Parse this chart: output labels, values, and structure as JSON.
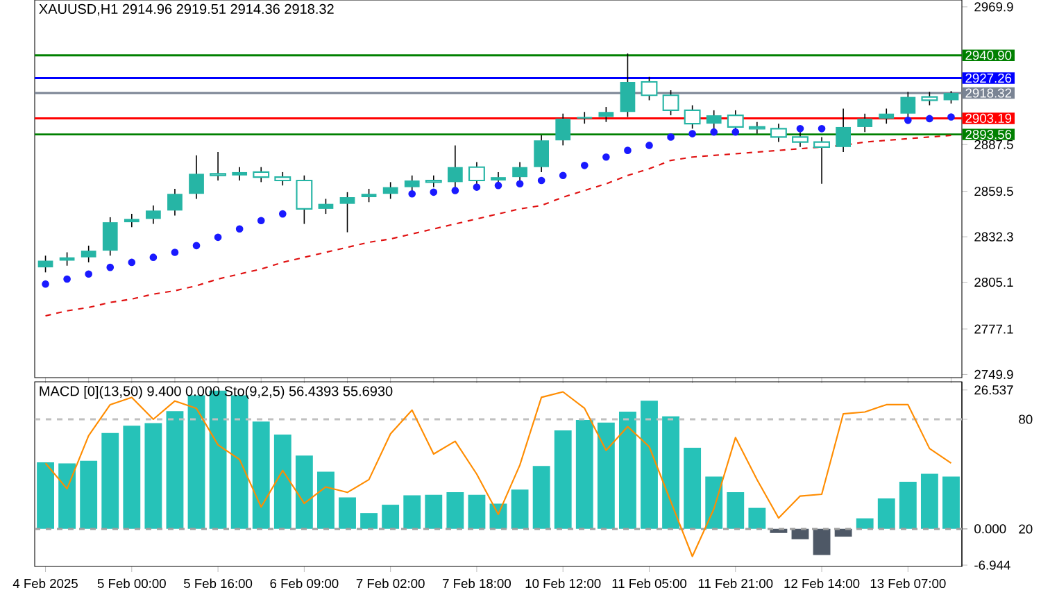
{
  "chart_data": [
    {
      "type": "candlestick",
      "title": "XAUUSD,H1 2914.96 2919.51 2914.36 2918.32",
      "categories": [
        null,
        null,
        null,
        null,
        null,
        null,
        null,
        null,
        null,
        null,
        null,
        null,
        null,
        null,
        null,
        null,
        null,
        null,
        null,
        null,
        null,
        null,
        null,
        null,
        null,
        null,
        null,
        null,
        null,
        null,
        null,
        null,
        null,
        null,
        null,
        null,
        null,
        null,
        null,
        null,
        null,
        null,
        null
      ],
      "ylim": [
        2748,
        2974
      ],
      "yticks": [
        2969.9,
        2887.5,
        2859.5,
        2832.3,
        2805.1,
        2777.1,
        2749.9
      ],
      "tick_labels": "y",
      "series": [
        {
          "color": "#26b5a5",
          "ohlc": [
            [
              2814,
              2821,
              2811,
              2818
            ],
            [
              2818,
              2823,
              2815,
              2820
            ],
            [
              2820,
              2827,
              2817,
              2824
            ],
            [
              2824,
              2844,
              2821,
              2841
            ],
            [
              2841,
              2846,
              2838,
              2843
            ],
            [
              2843,
              2851,
              2840,
              2848
            ],
            [
              2848,
              2861,
              2845,
              2858
            ],
            [
              2858,
              2881,
              2855,
              2870
            ],
            [
              2870,
              2883,
              2866,
              2869
            ],
            [
              2869,
              2874,
              2866,
              2871
            ],
            [
              2871,
              2874,
              2865,
              2868
            ],
            [
              2868,
              2871,
              2863,
              2866
            ],
            [
              2866,
              2869,
              2840,
              2849
            ],
            [
              2849,
              2855,
              2846,
              2852
            ],
            [
              2852,
              2859,
              2835,
              2856
            ],
            [
              2856,
              2861,
              2853,
              2858
            ],
            [
              2858,
              2865,
              2855,
              2862
            ],
            [
              2862,
              2869,
              2859,
              2866
            ],
            [
              2866,
              2869,
              2862,
              2865
            ],
            [
              2865,
              2887,
              2862,
              2874
            ],
            [
              2874,
              2877,
              2863,
              2866
            ],
            [
              2866,
              2871,
              2863,
              2868
            ],
            [
              2868,
              2877,
              2865,
              2874
            ],
            [
              2874,
              2893,
              2871,
              2890
            ],
            [
              2890,
              2906,
              2887,
              2903
            ],
            [
              2903,
              2907,
              2900,
              2904
            ],
            [
              2904,
              2910,
              2901,
              2907
            ],
            [
              2907,
              2942,
              2904,
              2925
            ],
            [
              2925,
              2928,
              2914,
              2917
            ],
            [
              2917,
              2920,
              2905,
              2908
            ],
            [
              2908,
              2911,
              2897,
              2900
            ],
            [
              2900,
              2908,
              2897,
              2905
            ],
            [
              2905,
              2908,
              2895,
              2898
            ],
            [
              2898,
              2901,
              2894,
              2897
            ],
            [
              2897,
              2900,
              2889,
              2892
            ],
            [
              2892,
              2895,
              2886,
              2889
            ],
            [
              2889,
              2892,
              2864,
              2886
            ],
            [
              2886,
              2909,
              2883,
              2898
            ],
            [
              2898,
              2906,
              2895,
              2903
            ],
            [
              2903,
              2909,
              2900,
              2906
            ],
            [
              2906,
              2919,
              2903,
              2916
            ],
            [
              2916,
              2919,
              2911,
              2914
            ],
            [
              2914,
              2919.51,
              2912,
              2918.32
            ]
          ]
        },
        {
          "type": "scatter",
          "color": "#1a1aff",
          "values": [
            2804,
            2807,
            2810,
            2814,
            2817,
            2820,
            2823,
            2827,
            2832,
            2837,
            2842,
            2846,
            null,
            null,
            null,
            null,
            null,
            2858,
            2859,
            2860,
            2862,
            2863,
            2864,
            2866,
            2869,
            2875,
            2880,
            2884,
            2887,
            2892,
            2894,
            2895,
            2895,
            null,
            null,
            2897,
            2897,
            null,
            null,
            null,
            2902,
            2903,
            2904
          ]
        },
        {
          "type": "line",
          "color": "#e01010",
          "line_style": "dashed",
          "values": [
            2785,
            2788,
            2790,
            2793,
            2795,
            2798,
            2800,
            2803,
            2807,
            2810,
            2813,
            2817,
            2820,
            2823,
            2826,
            2829,
            2831,
            2834,
            2837,
            2840,
            2843,
            2846,
            2849,
            2851,
            2856,
            2860,
            2864,
            2869,
            2873,
            2878,
            2880,
            2881,
            2882,
            2883,
            2884,
            2885,
            2886,
            2887,
            2889,
            2890,
            2891,
            2892,
            2893
          ]
        }
      ],
      "ref_lines": [
        {
          "axis": "y",
          "value": 2940.9,
          "label": "2940.90",
          "color": "#008000"
        },
        {
          "axis": "y",
          "value": 2927.26,
          "label": "2927.26",
          "color": "#0000ff"
        },
        {
          "axis": "y",
          "value": 2918.32,
          "label": "2918.32",
          "color": "#7a8494"
        },
        {
          "axis": "y",
          "value": 2903.19,
          "label": "2903.19",
          "color": "#ff0000"
        },
        {
          "axis": "y",
          "value": 2893.56,
          "label": "2893.56",
          "color": "#008000"
        }
      ]
    },
    {
      "type": "bar",
      "title": "MACD [0](13,50) 9.400 0.000  Sto(9,2,5) 56.4393 55.6930",
      "ylim": [
        -7.2,
        28.1
      ],
      "yticks": [
        26.537,
        {
          "value": 0,
          "label": "0.000"
        },
        -6.944
      ],
      "y2lim": [
        -0.5,
        100.5
      ],
      "y2ticks": [
        80,
        20
      ],
      "categories": [
        "4 Feb 2025",
        null,
        null,
        null,
        "5 Feb 00:00",
        null,
        null,
        null,
        "5 Feb 16:00",
        null,
        null,
        null,
        "6 Feb 09:00",
        null,
        null,
        null,
        "7 Feb 02:00",
        null,
        null,
        null,
        "7 Feb 18:00",
        null,
        null,
        null,
        "10 Feb 12:00",
        null,
        null,
        null,
        "11 Feb 05:00",
        null,
        null,
        null,
        "11 Feb 21:00",
        null,
        null,
        null,
        "12 Feb 14:00",
        null,
        null,
        null,
        "13 Feb 07:00",
        null,
        null
      ],
      "series": [
        {
          "values": [
            12.7,
            12.5,
            13.0,
            18.3,
            19.7,
            20.2,
            22.5,
            25.5,
            26.4,
            25.5,
            20.5,
            18.0,
            14.0,
            10.9,
            6.0,
            3.0,
            4.6,
            6.4,
            6.5,
            7.0,
            6.5,
            4.8,
            7.5,
            12.0,
            18.8,
            20.8,
            20.3,
            22.4,
            24.5,
            21.5,
            15.5,
            10.0,
            7.0,
            4.0,
            -0.8,
            -2.0,
            -5.0,
            -1.5,
            2.0,
            5.8,
            9.0,
            10.5,
            10.0
          ],
          "colors": [
            "#26c2b8",
            "#26c2b8",
            "#26c2b8",
            "#26c2b8",
            "#26c2b8",
            "#26c2b8",
            "#26c2b8",
            "#26c2b8",
            "#26c2b8",
            "#26c2b8",
            "#26c2b8",
            "#26c2b8",
            "#26c2b8",
            "#26c2b8",
            "#26c2b8",
            "#26c2b8",
            "#26c2b8",
            "#26c2b8",
            "#26c2b8",
            "#26c2b8",
            "#26c2b8",
            "#26c2b8",
            "#26c2b8",
            "#26c2b8",
            "#26c2b8",
            "#26c2b8",
            "#26c2b8",
            "#26c2b8",
            "#26c2b8",
            "#26c2b8",
            "#26c2b8",
            "#26c2b8",
            "#26c2b8",
            "#26c2b8",
            "#4e5866",
            "#4e5866",
            "#4e5866",
            "#4e5866",
            "#26c2b8",
            "#26c2b8",
            "#26c2b8",
            "#26c2b8",
            "#26c2b8"
          ]
        },
        {
          "type": "line",
          "axis": "y2",
          "color": "#ff8c00",
          "values": [
            56,
            42,
            71,
            88,
            92,
            80,
            90,
            86,
            66,
            58,
            32,
            52,
            34,
            43,
            40,
            47,
            72,
            85,
            61,
            68,
            50,
            28,
            55,
            92,
            95,
            86,
            63,
            76,
            65,
            35,
            5,
            31,
            70,
            47,
            26,
            38,
            39,
            83,
            84,
            88,
            88,
            64,
            56
          ]
        }
      ],
      "ref_lines": [
        {
          "axis": "y2",
          "value": 80,
          "color": "#c0c0c0",
          "line_style": "dashed"
        },
        {
          "axis": "y2",
          "value": 20,
          "color": "#a0a0a0",
          "line_style": "dashed"
        }
      ]
    }
  ]
}
